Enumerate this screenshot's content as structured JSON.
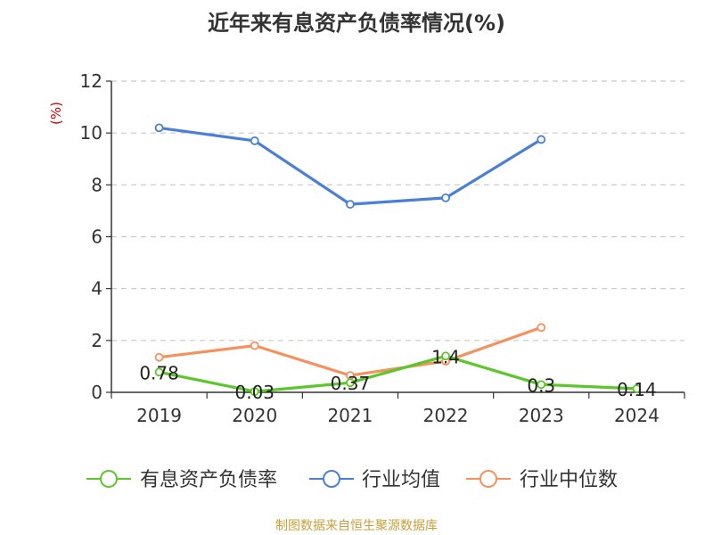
{
  "chart_data": {
    "type": "line",
    "title": "近年来有息资产负债率情况(%)",
    "unit_label": "(%)",
    "categories": [
      "2019",
      "2020",
      "2021",
      "2022",
      "2023",
      "2024"
    ],
    "ylim": [
      0,
      12
    ],
    "yticks": [
      "0",
      "2",
      "4",
      "6",
      "8",
      "10",
      "12"
    ],
    "grid": true,
    "legend_position": "bottom",
    "series": [
      {
        "name": "有息资产负债率",
        "color": "#5cc72a",
        "values": [
          0.78,
          0.03,
          0.37,
          1.4,
          0.3,
          0.14
        ],
        "labels": [
          "0.78",
          "0.03",
          "0.37",
          "1.4",
          "0.3",
          "0.14"
        ]
      },
      {
        "name": "行业均值",
        "color": "#4a7fd8",
        "values": [
          10.2,
          9.7,
          7.25,
          7.5,
          9.75,
          null
        ]
      },
      {
        "name": "行业中位数",
        "color": "#f5915e",
        "values": [
          1.35,
          1.8,
          0.65,
          1.2,
          2.5,
          null
        ]
      }
    ]
  },
  "source_note": "制图数据来自恒生聚源数据库"
}
